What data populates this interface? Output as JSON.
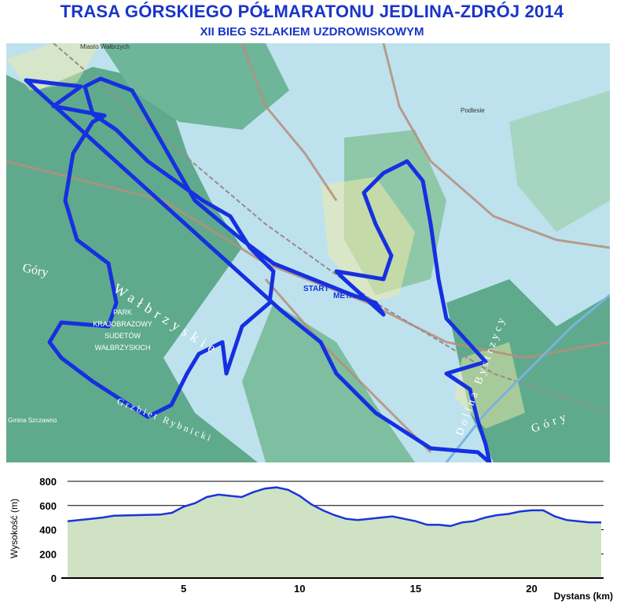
{
  "header": {
    "title": "TRASA GÓRSKIEGO PÓŁMARATONU JEDLINA-ZDRÓJ 2014",
    "subtitle": "XII BIEG SZLAKIEM UZDROWISKOWYM"
  },
  "map": {
    "start_label": "START",
    "finish_label": "META",
    "place_labels": {
      "walbrzych": "Miasto Wałbrzych",
      "podlesie": "Podlesie",
      "park_line1": "PARK",
      "park_line2": "KRAJOBRAZOWY",
      "park_line3": "SUDETÓW",
      "park_line4": "WAŁBRZYSKICH",
      "gory_walbrzyskie_1": "Góry",
      "gory_walbrzyskie_2": "Wałbrzyskie",
      "grzbiet": "Grzbiet Rybnicki",
      "dolina": "Dolina Bystrzycy",
      "gory_right": "Góry",
      "gmina": "Gmina Szczawno"
    },
    "colors": {
      "route": "#1530e0",
      "forest": "#5faa8c",
      "meadow": "#bde2ee",
      "roads": "#b58f7c",
      "settlement": "#f0eaa8"
    }
  },
  "chart_data": {
    "type": "area",
    "title": "",
    "xlabel": "Dystans (km)",
    "ylabel": "Wysokość (m)",
    "xlim": [
      0,
      23.1
    ],
    "ylim": [
      0,
      800
    ],
    "x_ticks": [
      5,
      10,
      15,
      20
    ],
    "y_ticks": [
      0,
      200,
      400,
      600,
      800
    ],
    "grid": true,
    "legend": "none",
    "line_color": "#1a35d8",
    "fill_color": "#cfe3c4",
    "x": [
      0,
      0.5,
      1,
      1.5,
      2,
      3,
      4,
      4.5,
      5,
      5.5,
      6,
      6.5,
      7,
      7.5,
      8,
      8.5,
      9,
      9.5,
      10,
      10.5,
      11,
      11.5,
      12,
      12.5,
      13,
      13.5,
      14,
      14.5,
      15,
      15.5,
      16,
      16.5,
      17,
      17.5,
      18,
      18.5,
      19,
      19.5,
      20,
      20.5,
      21,
      21.5,
      22,
      22.5,
      23
    ],
    "values": [
      470,
      480,
      490,
      500,
      515,
      520,
      525,
      540,
      590,
      620,
      670,
      690,
      680,
      670,
      710,
      740,
      750,
      730,
      680,
      610,
      560,
      520,
      490,
      480,
      490,
      500,
      510,
      490,
      470,
      440,
      440,
      430,
      460,
      470,
      500,
      520,
      530,
      550,
      560,
      560,
      510,
      480,
      470,
      460,
      460
    ]
  }
}
